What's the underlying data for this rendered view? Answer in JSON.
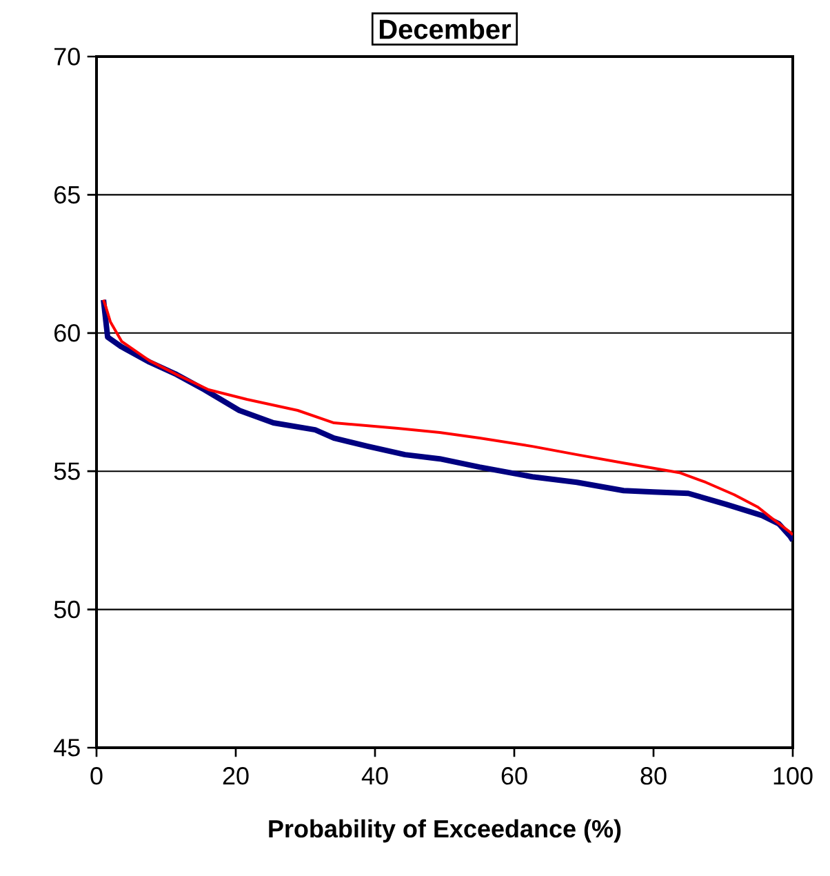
{
  "chart_data": {
    "type": "line",
    "title": "December",
    "xlabel": "Probability of Exceedance (%)",
    "xlim": [
      0,
      100
    ],
    "ylim": [
      45,
      70
    ],
    "xticks": [
      0,
      20,
      40,
      60,
      80,
      100
    ],
    "yticks": [
      45,
      50,
      55,
      60,
      65,
      70
    ],
    "grid": "y",
    "series": [
      {
        "color": "#000080",
        "x": [
          1,
          1.6,
          3.6,
          7.6,
          11.5,
          15.5,
          20.5,
          25.4,
          31.4,
          34.1,
          39,
          44.3,
          49.3,
          55,
          62.6,
          69,
          75.7,
          80,
          85,
          90.5,
          95.6,
          98,
          99.6,
          100
        ],
        "values": [
          61.2,
          59.85,
          59.5,
          58.95,
          58.5,
          57.95,
          57.2,
          56.75,
          56.5,
          56.2,
          55.9,
          55.6,
          55.45,
          55.15,
          54.8,
          54.6,
          54.3,
          54.25,
          54.2,
          53.8,
          53.4,
          53.1,
          52.65,
          52.5
        ]
      },
      {
        "color": "#ff0000",
        "x": [
          1,
          1.4,
          2,
          3.6,
          7.6,
          11.5,
          16.1,
          21.6,
          28.9,
          34.1,
          43.3,
          49.3,
          55,
          62.6,
          69,
          75.7,
          83.7,
          87.5,
          91.6,
          95,
          97,
          99.6,
          100
        ],
        "values": [
          61.2,
          60.9,
          60.4,
          59.7,
          59.0,
          58.5,
          57.95,
          57.6,
          57.2,
          56.75,
          56.55,
          56.4,
          56.2,
          55.9,
          55.6,
          55.3,
          54.95,
          54.6,
          54.15,
          53.7,
          53.3,
          52.8,
          52.7
        ]
      }
    ]
  }
}
